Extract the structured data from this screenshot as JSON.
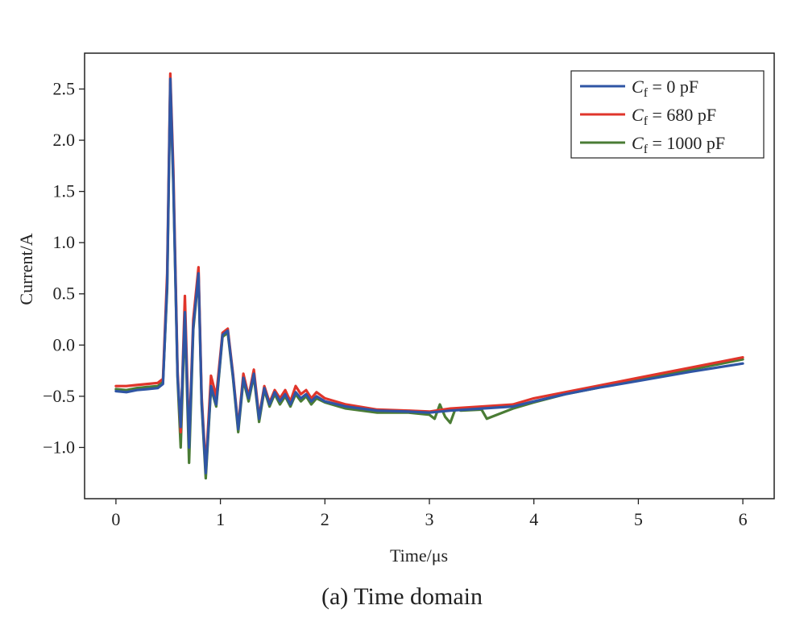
{
  "caption": "(a) Time domain",
  "chart_data": {
    "type": "line",
    "xlabel": "Time/μs",
    "ylabel": "Current/A",
    "xlim": [
      -0.3,
      6.3
    ],
    "ylim": [
      -1.5,
      2.85
    ],
    "xticks": [
      0,
      1,
      2,
      3,
      4,
      5,
      6
    ],
    "yticks": [
      -1.0,
      -0.5,
      0.0,
      0.5,
      1.0,
      1.5,
      2.0,
      2.5
    ],
    "ytick_labels": [
      "−1.0",
      "−0.5",
      "0.0",
      "0.5",
      "1.0",
      "1.5",
      "2.0",
      "2.5"
    ],
    "grid": false,
    "legend_position": "top-right",
    "series": [
      {
        "name": "Cf = 0 pF",
        "legend_main": "C",
        "legend_sub": "f",
        "legend_rest": " = 0 pF",
        "color": "#2f55a4",
        "x": [
          0,
          0.1,
          0.2,
          0.3,
          0.4,
          0.45,
          0.49,
          0.52,
          0.55,
          0.59,
          0.62,
          0.66,
          0.7,
          0.74,
          0.79,
          0.82,
          0.86,
          0.91,
          0.96,
          1.02,
          1.07,
          1.12,
          1.17,
          1.22,
          1.27,
          1.32,
          1.37,
          1.42,
          1.47,
          1.52,
          1.57,
          1.62,
          1.67,
          1.72,
          1.77,
          1.82,
          1.87,
          1.92,
          2.0,
          2.2,
          2.5,
          2.8,
          3.0,
          3.2,
          3.5,
          3.8,
          4.0,
          4.3,
          4.6,
          5.0,
          5.5,
          6.0
        ],
        "y": [
          -0.45,
          -0.46,
          -0.44,
          -0.43,
          -0.42,
          -0.38,
          0.6,
          2.6,
          1.6,
          -0.3,
          -0.8,
          0.32,
          -1.0,
          0.18,
          0.7,
          -0.55,
          -1.25,
          -0.4,
          -0.58,
          0.1,
          0.14,
          -0.3,
          -0.82,
          -0.32,
          -0.52,
          -0.28,
          -0.72,
          -0.42,
          -0.58,
          -0.46,
          -0.55,
          -0.48,
          -0.58,
          -0.46,
          -0.52,
          -0.48,
          -0.55,
          -0.5,
          -0.55,
          -0.6,
          -0.64,
          -0.65,
          -0.66,
          -0.64,
          -0.62,
          -0.6,
          -0.55,
          -0.48,
          -0.42,
          -0.35,
          -0.26,
          -0.18
        ]
      },
      {
        "name": "Cf = 680 pF",
        "legend_main": "C",
        "legend_sub": "f",
        "legend_rest": " = 680 pF",
        "color": "#e0352b",
        "x": [
          0,
          0.1,
          0.2,
          0.3,
          0.4,
          0.45,
          0.49,
          0.52,
          0.55,
          0.59,
          0.62,
          0.66,
          0.7,
          0.74,
          0.79,
          0.82,
          0.86,
          0.91,
          0.96,
          1.02,
          1.07,
          1.12,
          1.17,
          1.22,
          1.27,
          1.32,
          1.37,
          1.42,
          1.47,
          1.52,
          1.57,
          1.62,
          1.67,
          1.72,
          1.77,
          1.82,
          1.87,
          1.92,
          2.0,
          2.2,
          2.5,
          2.8,
          3.0,
          3.2,
          3.5,
          3.8,
          4.0,
          4.3,
          4.6,
          5.0,
          5.5,
          6.0
        ],
        "y": [
          -0.4,
          -0.4,
          -0.39,
          -0.38,
          -0.37,
          -0.33,
          0.7,
          2.65,
          1.7,
          -0.25,
          -0.85,
          0.48,
          -0.95,
          0.25,
          0.76,
          -0.5,
          -1.2,
          -0.3,
          -0.5,
          0.12,
          0.16,
          -0.28,
          -0.8,
          -0.28,
          -0.5,
          -0.24,
          -0.7,
          -0.4,
          -0.56,
          -0.44,
          -0.52,
          -0.44,
          -0.55,
          -0.4,
          -0.48,
          -0.44,
          -0.52,
          -0.46,
          -0.52,
          -0.58,
          -0.63,
          -0.64,
          -0.65,
          -0.62,
          -0.6,
          -0.58,
          -0.52,
          -0.46,
          -0.4,
          -0.32,
          -0.22,
          -0.12
        ]
      },
      {
        "name": "Cf = 1000 pF",
        "legend_main": "C",
        "legend_sub": "f",
        "legend_rest": " = 1000 pF",
        "color": "#4a7c35",
        "x": [
          0,
          0.1,
          0.2,
          0.3,
          0.4,
          0.45,
          0.49,
          0.52,
          0.55,
          0.59,
          0.62,
          0.66,
          0.7,
          0.74,
          0.79,
          0.82,
          0.86,
          0.91,
          0.96,
          1.02,
          1.07,
          1.12,
          1.17,
          1.22,
          1.27,
          1.32,
          1.37,
          1.42,
          1.47,
          1.52,
          1.57,
          1.62,
          1.67,
          1.72,
          1.77,
          1.82,
          1.87,
          1.92,
          2.0,
          2.2,
          2.5,
          2.8,
          3.0,
          3.05,
          3.1,
          3.15,
          3.2,
          3.25,
          3.3,
          3.5,
          3.55,
          3.8,
          4.0,
          4.3,
          4.6,
          5.0,
          5.5,
          6.0
        ],
        "y": [
          -0.43,
          -0.44,
          -0.42,
          -0.41,
          -0.4,
          -0.36,
          0.55,
          2.55,
          1.55,
          -0.32,
          -1.0,
          0.3,
          -1.15,
          0.15,
          0.68,
          -0.58,
          -1.3,
          -0.42,
          -0.6,
          0.08,
          0.12,
          -0.32,
          -0.85,
          -0.34,
          -0.55,
          -0.3,
          -0.75,
          -0.44,
          -0.6,
          -0.48,
          -0.58,
          -0.5,
          -0.6,
          -0.48,
          -0.55,
          -0.5,
          -0.58,
          -0.52,
          -0.56,
          -0.62,
          -0.66,
          -0.66,
          -0.68,
          -0.72,
          -0.58,
          -0.7,
          -0.76,
          -0.62,
          -0.64,
          -0.63,
          -0.72,
          -0.62,
          -0.56,
          -0.48,
          -0.42,
          -0.33,
          -0.24,
          -0.14
        ]
      }
    ]
  }
}
